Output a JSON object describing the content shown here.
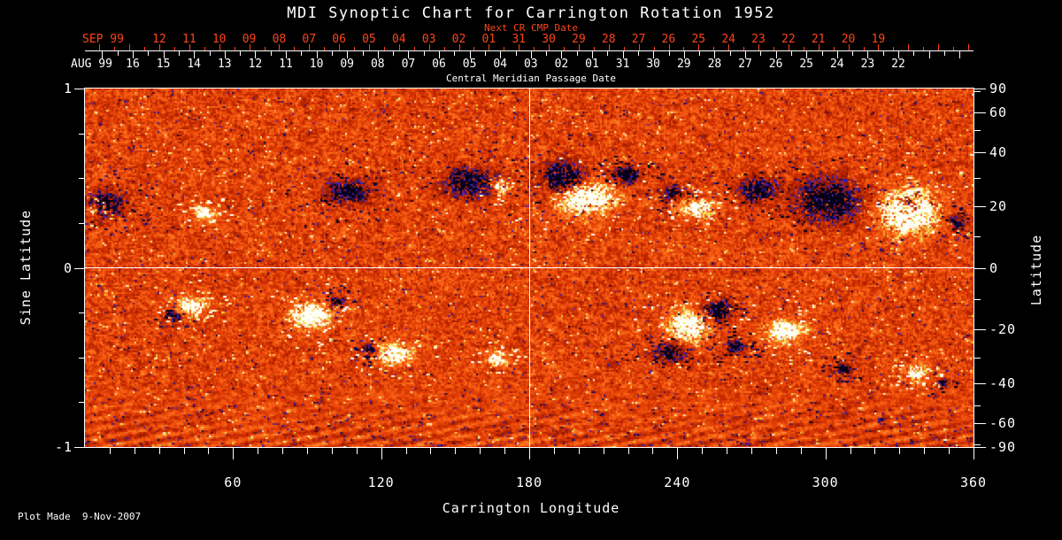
{
  "colors": {
    "background": "#000000",
    "axis_white": "#ffffff",
    "axis_red": "#ff4419",
    "magnetogram_base": "#e84408",
    "positive_flux": "#ffffff",
    "negative_flux": "#05001a"
  },
  "footer": {
    "plot_made": "Plot Made  9-Nov-2007"
  },
  "chart_data": {
    "type": "heatmap",
    "title": "MDI Synoptic Chart for Carrington Rotation 1952",
    "xlabel": "Carrington Longitude",
    "ylabel_left": "Sine Latitude",
    "ylabel_right": "Latitude",
    "xlim": [
      0,
      360
    ],
    "ylim_sine": [
      -1,
      1
    ],
    "x_ticks": [
      60,
      120,
      180,
      240,
      300,
      360
    ],
    "x_minor_step_deg": 10,
    "left_ticks": {
      "values": [
        1,
        0,
        -1
      ],
      "labels": [
        "1",
        "0",
        "-1"
      ],
      "minor_step": 0.25
    },
    "right_ticks": {
      "values": [
        90,
        60,
        40,
        20,
        0,
        -20,
        -40,
        -60,
        -90
      ],
      "labels": [
        "90",
        "60",
        "40",
        "20",
        "0",
        "-20",
        "-40",
        "-60",
        "-90"
      ],
      "minor_values": [
        80,
        50,
        30,
        10,
        -10,
        -30,
        -50,
        -80
      ]
    },
    "cmp_axis": {
      "label": "Central Meridian Passage Date",
      "next_cr_label": "Next CR CMP Date",
      "next_month": "SEP 99",
      "next_days": [
        "12",
        "11",
        "10",
        "09",
        "08",
        "07",
        "06",
        "05",
        "04",
        "03",
        "02",
        "01",
        "31",
        "30",
        "29",
        "28",
        "27",
        "26",
        "25",
        "24",
        "23",
        "22",
        "21",
        "20",
        "19"
      ],
      "month": "AUG 99",
      "days": [
        "16",
        "15",
        "14",
        "13",
        "12",
        "11",
        "10",
        "09",
        "08",
        "07",
        "06",
        "05",
        "04",
        "03",
        "02",
        "01",
        "31",
        "30",
        "29",
        "28",
        "27",
        "26",
        "25",
        "24",
        "23",
        "22"
      ]
    },
    "crosshair": {
      "longitude": 180,
      "sine_latitude": 0
    },
    "colormap": "red-orange solar magnetogram: white/yellow = strong positive flux, black/blue = strong negative flux, granular orange noise = quiet Sun",
    "active_regions": [
      {
        "lon": 7,
        "sine_lat": 0.36,
        "polarity": -1,
        "rx_deg": 10,
        "ry_sine": 0.09,
        "strength": 1.2
      },
      {
        "lon": 3,
        "sine_lat": 0.33,
        "polarity": 1,
        "rx_deg": 3.6,
        "ry_sine": 0.04,
        "strength": 1.3
      },
      {
        "lon": 48,
        "sine_lat": 0.31,
        "polarity": 1,
        "rx_deg": 5,
        "ry_sine": 0.045,
        "strength": 1.4
      },
      {
        "lon": 106,
        "sine_lat": 0.43,
        "polarity": -1,
        "rx_deg": 11,
        "ry_sine": 0.08,
        "strength": 1.2
      },
      {
        "lon": 156,
        "sine_lat": 0.48,
        "polarity": -1,
        "rx_deg": 14,
        "ry_sine": 0.1,
        "strength": 1.2
      },
      {
        "lon": 168,
        "sine_lat": 0.45,
        "polarity": 1,
        "rx_deg": 4.5,
        "ry_sine": 0.04,
        "strength": 1.3
      },
      {
        "lon": 194,
        "sine_lat": 0.5,
        "polarity": -1,
        "rx_deg": 11,
        "ry_sine": 0.11,
        "strength": 1.5
      },
      {
        "lon": 202,
        "sine_lat": 0.4,
        "polarity": 1,
        "rx_deg": 13.5,
        "ry_sine": 0.11,
        "strength": 1.6
      },
      {
        "lon": 219,
        "sine_lat": 0.52,
        "polarity": -1,
        "rx_deg": 6.5,
        "ry_sine": 0.05,
        "strength": 1.4
      },
      {
        "lon": 247,
        "sine_lat": 0.34,
        "polarity": 1,
        "rx_deg": 8,
        "ry_sine": 0.06,
        "strength": 1.4
      },
      {
        "lon": 238,
        "sine_lat": 0.42,
        "polarity": -1,
        "rx_deg": 5,
        "ry_sine": 0.05,
        "strength": 1.2
      },
      {
        "lon": 272,
        "sine_lat": 0.44,
        "polarity": -1,
        "rx_deg": 10,
        "ry_sine": 0.08,
        "strength": 1.2
      },
      {
        "lon": 301,
        "sine_lat": 0.38,
        "polarity": -1,
        "rx_deg": 16,
        "ry_sine": 0.15,
        "strength": 1.3
      },
      {
        "lon": 333,
        "sine_lat": 0.32,
        "polarity": 1,
        "rx_deg": 14,
        "ry_sine": 0.15,
        "strength": 1.6
      },
      {
        "lon": 333,
        "sine_lat": 0.37,
        "polarity": -1,
        "rx_deg": 4.3,
        "ry_sine": 0.04,
        "strength": 1.5
      },
      {
        "lon": 353,
        "sine_lat": 0.26,
        "polarity": -1,
        "rx_deg": 4.3,
        "ry_sine": 0.05,
        "strength": 1.1
      },
      {
        "lon": 43,
        "sine_lat": -0.21,
        "polarity": 1,
        "rx_deg": 6.5,
        "ry_sine": 0.06,
        "strength": 1.4
      },
      {
        "lon": 36,
        "sine_lat": -0.27,
        "polarity": -1,
        "rx_deg": 3.6,
        "ry_sine": 0.035,
        "strength": 1.1
      },
      {
        "lon": 91,
        "sine_lat": -0.26,
        "polarity": 1,
        "rx_deg": 9.3,
        "ry_sine": 0.08,
        "strength": 1.5
      },
      {
        "lon": 102,
        "sine_lat": -0.18,
        "polarity": -1,
        "rx_deg": 3.6,
        "ry_sine": 0.04,
        "strength": 1.1
      },
      {
        "lon": 125,
        "sine_lat": -0.48,
        "polarity": 1,
        "rx_deg": 8,
        "ry_sine": 0.065,
        "strength": 1.5
      },
      {
        "lon": 115,
        "sine_lat": -0.45,
        "polarity": -1,
        "rx_deg": 3.6,
        "ry_sine": 0.04,
        "strength": 1.1
      },
      {
        "lon": 167,
        "sine_lat": -0.5,
        "polarity": 1,
        "rx_deg": 5,
        "ry_sine": 0.04,
        "strength": 1.3
      },
      {
        "lon": 244,
        "sine_lat": -0.32,
        "polarity": 1,
        "rx_deg": 9.3,
        "ry_sine": 0.1,
        "strength": 1.5
      },
      {
        "lon": 256,
        "sine_lat": -0.24,
        "polarity": -1,
        "rx_deg": 7,
        "ry_sine": 0.07,
        "strength": 1.3
      },
      {
        "lon": 237,
        "sine_lat": -0.47,
        "polarity": -1,
        "rx_deg": 8,
        "ry_sine": 0.06,
        "strength": 1.3
      },
      {
        "lon": 263,
        "sine_lat": -0.43,
        "polarity": -1,
        "rx_deg": 5,
        "ry_sine": 0.05,
        "strength": 1.2
      },
      {
        "lon": 283,
        "sine_lat": -0.35,
        "polarity": 1,
        "rx_deg": 9.3,
        "ry_sine": 0.08,
        "strength": 1.4
      },
      {
        "lon": 307,
        "sine_lat": -0.56,
        "polarity": -1,
        "rx_deg": 4.3,
        "ry_sine": 0.04,
        "strength": 1.2
      },
      {
        "lon": 337,
        "sine_lat": -0.58,
        "polarity": 1,
        "rx_deg": 5,
        "ry_sine": 0.05,
        "strength": 1.3
      },
      {
        "lon": 347,
        "sine_lat": -0.64,
        "polarity": -1,
        "rx_deg": 3,
        "ry_sine": 0.03,
        "strength": 1.1
      }
    ]
  }
}
